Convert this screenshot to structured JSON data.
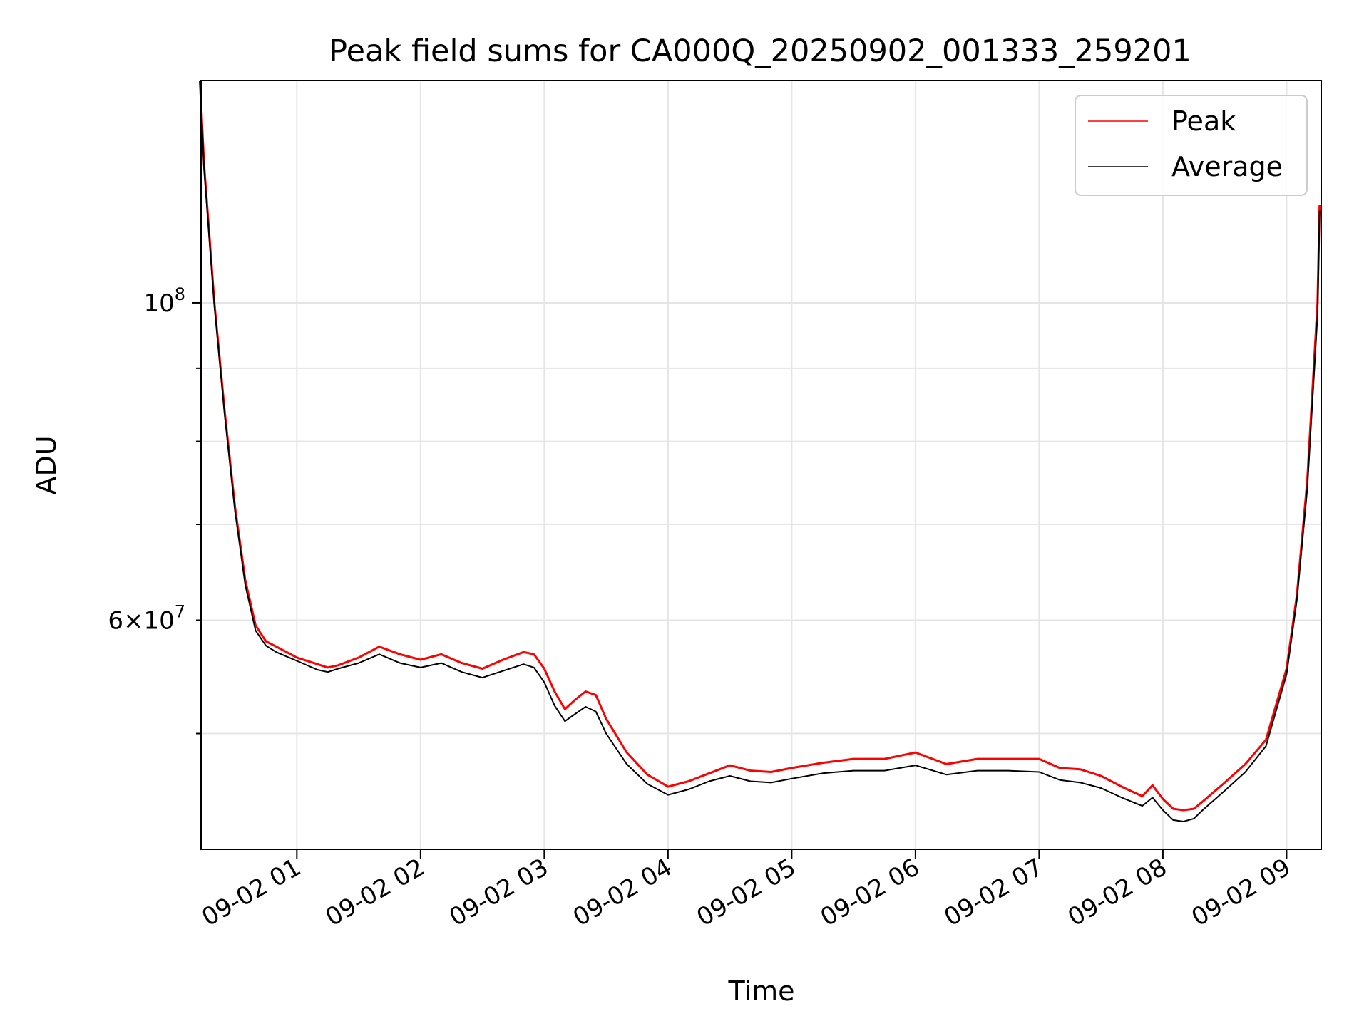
{
  "chart_data": {
    "type": "line",
    "title": "Peak field sums for CA000Q_20250902_001333_259201",
    "xlabel": "Time",
    "ylabel": "ADU",
    "y_scale": "log",
    "ylim": [
      41500000,
      143000000
    ],
    "xlim": [
      "2025-09-02 00:13:33",
      "2025-09-02 09:16:48"
    ],
    "x_ticks": [
      "2025-09-02 01:00",
      "2025-09-02 02:00",
      "2025-09-02 03:00",
      "2025-09-02 04:00",
      "2025-09-02 05:00",
      "2025-09-02 06:00",
      "2025-09-02 07:00",
      "2025-09-02 08:00",
      "2025-09-02 09:00"
    ],
    "x_tick_labels": [
      "09-02 01",
      "09-02 02",
      "09-02 03",
      "09-02 04",
      "09-02 05",
      "09-02 06",
      "09-02 07",
      "09-02 08",
      "09-02 09"
    ],
    "y_major_ticks": [
      {
        "value": 100000000,
        "base": "10",
        "exp": "8"
      }
    ],
    "y_minor_ticks": [
      {
        "value": 60000000,
        "mantissa": "6",
        "base": "10",
        "exp": "7"
      }
    ],
    "y_minor_unlabeled": [
      50000000,
      70000000,
      80000000,
      90000000
    ],
    "grid": true,
    "legend_position": "top-right",
    "x": [
      "2025-09-02 00:13",
      "2025-09-02 00:15",
      "2025-09-02 00:20",
      "2025-09-02 00:25",
      "2025-09-02 00:30",
      "2025-09-02 00:35",
      "2025-09-02 00:40",
      "2025-09-02 00:45",
      "2025-09-02 00:50",
      "2025-09-02 00:55",
      "2025-09-02 01:00",
      "2025-09-02 01:10",
      "2025-09-02 01:15",
      "2025-09-02 01:20",
      "2025-09-02 01:30",
      "2025-09-02 01:40",
      "2025-09-02 01:50",
      "2025-09-02 02:00",
      "2025-09-02 02:10",
      "2025-09-02 02:20",
      "2025-09-02 02:30",
      "2025-09-02 02:40",
      "2025-09-02 02:50",
      "2025-09-02 02:55",
      "2025-09-02 03:00",
      "2025-09-02 03:05",
      "2025-09-02 03:10",
      "2025-09-02 03:15",
      "2025-09-02 03:20",
      "2025-09-02 03:25",
      "2025-09-02 03:30",
      "2025-09-02 03:40",
      "2025-09-02 03:50",
      "2025-09-02 04:00",
      "2025-09-02 04:10",
      "2025-09-02 04:20",
      "2025-09-02 04:30",
      "2025-09-02 04:40",
      "2025-09-02 04:50",
      "2025-09-02 05:00",
      "2025-09-02 05:15",
      "2025-09-02 05:30",
      "2025-09-02 05:45",
      "2025-09-02 06:00",
      "2025-09-02 06:15",
      "2025-09-02 06:30",
      "2025-09-02 06:45",
      "2025-09-02 07:00",
      "2025-09-02 07:10",
      "2025-09-02 07:20",
      "2025-09-02 07:30",
      "2025-09-02 07:40",
      "2025-09-02 07:50",
      "2025-09-02 07:55",
      "2025-09-02 08:00",
      "2025-09-02 08:05",
      "2025-09-02 08:10",
      "2025-09-02 08:15",
      "2025-09-02 08:20",
      "2025-09-02 08:30",
      "2025-09-02 08:40",
      "2025-09-02 08:50",
      "2025-09-02 09:00",
      "2025-09-02 09:05",
      "2025-09-02 09:10",
      "2025-09-02 09:15",
      "2025-09-02 09:16"
    ],
    "series": [
      {
        "name": "Peak",
        "color": "#ff0000",
        "values": [
          143000000,
          125000000,
          100000000,
          84000000,
          72000000,
          64000000,
          59500000,
          58000000,
          57500000,
          57000000,
          56500000,
          55900000,
          55600000,
          55800000,
          56500000,
          57500000,
          56800000,
          56300000,
          56800000,
          56000000,
          55500000,
          56300000,
          57000000,
          56800000,
          55500000,
          53500000,
          52000000,
          52800000,
          53500000,
          53200000,
          51200000,
          48500000,
          46800000,
          45900000,
          46300000,
          46900000,
          47500000,
          47100000,
          47000000,
          47300000,
          47700000,
          48000000,
          48000000,
          48500000,
          47600000,
          48000000,
          48000000,
          48000000,
          47300000,
          47200000,
          46700000,
          45900000,
          45200000,
          46000000,
          45000000,
          44300000,
          44200000,
          44300000,
          44900000,
          46200000,
          47600000,
          49500000,
          55500000,
          62500000,
          75000000,
          100000000,
          117000000
        ]
      },
      {
        "name": "Average",
        "color": "#000000",
        "values": [
          143000000,
          124000000,
          99500000,
          83500000,
          71500000,
          63500000,
          59000000,
          57600000,
          57000000,
          56600000,
          56200000,
          55400000,
          55200000,
          55500000,
          56000000,
          56800000,
          56000000,
          55600000,
          56000000,
          55200000,
          54700000,
          55300000,
          55900000,
          55600000,
          54300000,
          52300000,
          51000000,
          51600000,
          52200000,
          51800000,
          50000000,
          47600000,
          46100000,
          45300000,
          45700000,
          46300000,
          46700000,
          46300000,
          46200000,
          46500000,
          46900000,
          47100000,
          47100000,
          47500000,
          46800000,
          47100000,
          47100000,
          47000000,
          46400000,
          46200000,
          45800000,
          45100000,
          44500000,
          45100000,
          44200000,
          43500000,
          43400000,
          43600000,
          44300000,
          45600000,
          47000000,
          49000000,
          55000000,
          62000000,
          74000000,
          98000000,
          116000000
        ]
      }
    ]
  }
}
